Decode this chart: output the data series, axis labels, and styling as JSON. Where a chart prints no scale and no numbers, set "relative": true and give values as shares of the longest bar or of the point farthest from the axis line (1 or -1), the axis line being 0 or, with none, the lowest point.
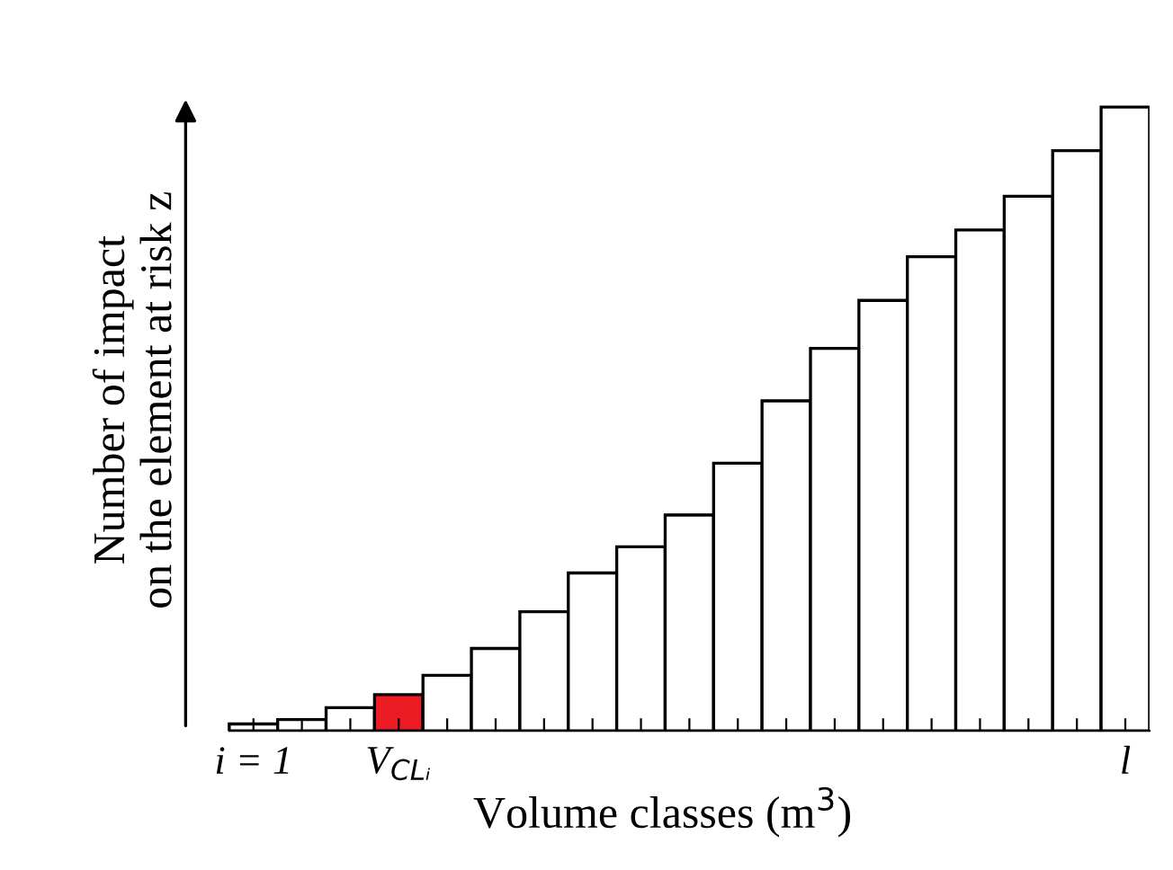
{
  "chart_data": {
    "type": "bar",
    "relative": true,
    "categories": [
      "i = 1",
      null,
      null,
      "V$_{CLᵢ}$",
      null,
      null,
      null,
      null,
      null,
      null,
      null,
      null,
      null,
      null,
      null,
      null,
      null,
      null,
      "l"
    ],
    "values": [
      0.011,
      0.018,
      0.037,
      0.058,
      0.089,
      0.132,
      0.191,
      0.253,
      0.295,
      0.346,
      0.429,
      0.529,
      0.613,
      0.69,
      0.76,
      0.803,
      0.857,
      0.93,
      1
    ],
    "colors": [
      "#ffffff",
      "#ffffff",
      "#ffffff",
      "#ed1c24",
      "#ffffff",
      "#ffffff",
      "#ffffff",
      "#ffffff",
      "#ffffff",
      "#ffffff",
      "#ffffff",
      "#ffffff",
      "#ffffff",
      "#ffffff",
      "#ffffff",
      "#ffffff",
      "#ffffff",
      "#ffffff",
      "#ffffff"
    ],
    "xlabel": "Volume classes (m$^{3}$)",
    "ylabel": "Number of impact\non the element at risk z",
    "grid": false,
    "legend": false
  }
}
